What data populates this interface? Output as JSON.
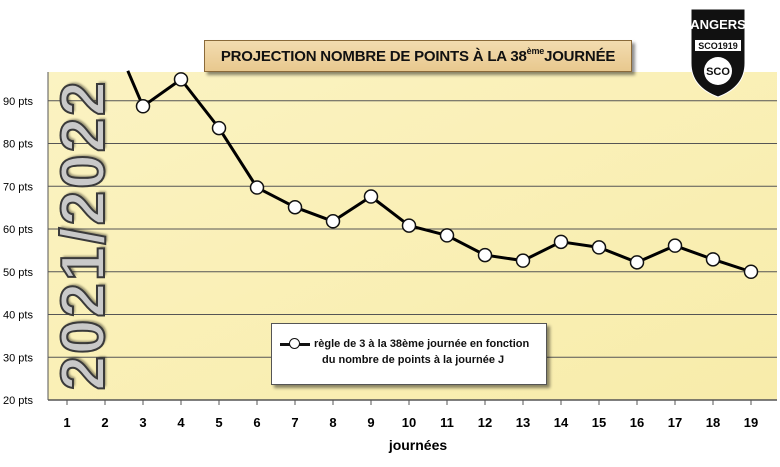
{
  "title": {
    "prefix": "PROJECTION NOMBRE DE POINTS À LA 38",
    "sup": "ème",
    "suffix": " JOURNÉE"
  },
  "season": "2021/2022",
  "logo": {
    "word": "ANGERS",
    "sub": "SCO1919",
    "mark": "SCO"
  },
  "chart_data": {
    "type": "line",
    "title": "PROJECTION NOMBRE DE POINTS À LA 38ème JOURNÉE",
    "xlabel": "journées",
    "ylabel": "",
    "categories": [
      "1",
      "2",
      "3",
      "4",
      "5",
      "6",
      "7",
      "8",
      "9",
      "10",
      "11",
      "12",
      "13",
      "14",
      "15",
      "16",
      "17",
      "18",
      "19"
    ],
    "y_ticks": [
      "20 pts",
      "30 pts",
      "40 pts",
      "50 pts",
      "60 pts",
      "70 pts",
      "80 pts",
      "90 pts"
    ],
    "ylim": [
      20,
      97
    ],
    "grid": "horizontal",
    "legend_position": "bottom-center",
    "series": [
      {
        "name": "règle de 3 à la 38ème journée en fonction du nombre de points à la journée J",
        "line_start": {
          "x": 2.6,
          "y": 97
        },
        "x": [
          3,
          4,
          5,
          6,
          7,
          8,
          9,
          10,
          11,
          12,
          13,
          14,
          15,
          16,
          17,
          18,
          19
        ],
        "values": [
          88.7,
          95,
          83.6,
          69.7,
          65.1,
          61.8,
          67.6,
          60.8,
          58.5,
          53.9,
          52.6,
          57.0,
          55.7,
          52.2,
          56.1,
          52.9,
          50.0
        ]
      }
    ],
    "legend_lines": [
      "règle de 3 à la 38ème journée en fonction",
      "du nombre de points à la journée J"
    ]
  }
}
